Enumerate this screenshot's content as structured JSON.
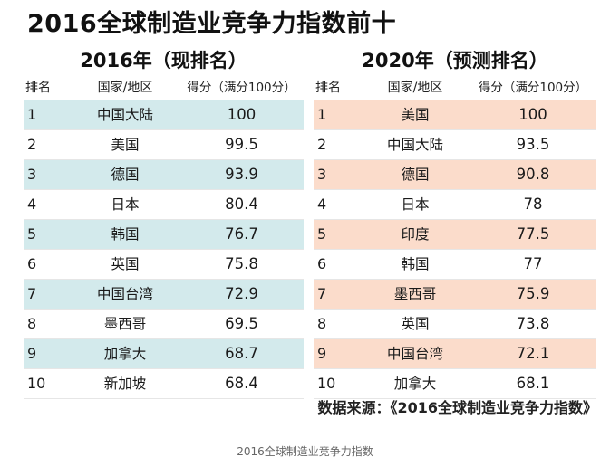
{
  "title": "2016全球制造业竞争力指数前十",
  "headers": {
    "rank": "排名",
    "name": "国家/地区",
    "score": "得分（满分100分）"
  },
  "left": {
    "title": "2016年（现排名）",
    "rows": [
      {
        "rank": "1",
        "name": "中国大陆",
        "score": "100"
      },
      {
        "rank": "2",
        "name": "美国",
        "score": "99.5"
      },
      {
        "rank": "3",
        "name": "德国",
        "score": "93.9"
      },
      {
        "rank": "4",
        "name": "日本",
        "score": "80.4"
      },
      {
        "rank": "5",
        "name": "韩国",
        "score": "76.7"
      },
      {
        "rank": "6",
        "name": "英国",
        "score": "75.8"
      },
      {
        "rank": "7",
        "name": "中国台湾",
        "score": "72.9"
      },
      {
        "rank": "8",
        "name": "墨西哥",
        "score": "69.5"
      },
      {
        "rank": "9",
        "name": "加拿大",
        "score": "68.7"
      },
      {
        "rank": "10",
        "name": "新加坡",
        "score": "68.4"
      }
    ]
  },
  "right": {
    "title": "2020年（预测排名）",
    "rows": [
      {
        "rank": "1",
        "name": "美国",
        "score": "100"
      },
      {
        "rank": "2",
        "name": "中国大陆",
        "score": "93.5"
      },
      {
        "rank": "3",
        "name": "德国",
        "score": "90.8"
      },
      {
        "rank": "4",
        "name": "日本",
        "score": "78"
      },
      {
        "rank": "5",
        "name": "印度",
        "score": "77.5"
      },
      {
        "rank": "6",
        "name": "韩国",
        "score": "77"
      },
      {
        "rank": "7",
        "name": "墨西哥",
        "score": "75.9"
      },
      {
        "rank": "8",
        "name": "英国",
        "score": "73.8"
      },
      {
        "rank": "9",
        "name": "中国台湾",
        "score": "72.1"
      },
      {
        "rank": "10",
        "name": "加拿大",
        "score": "68.1"
      }
    ]
  },
  "source": "数据来源：《2016全球制造业竞争力指数》",
  "caption": "2016全球制造业竞争力指数",
  "colors": {
    "left_stripe": "#d3eaec",
    "right_stripe": "#fbdccb"
  }
}
